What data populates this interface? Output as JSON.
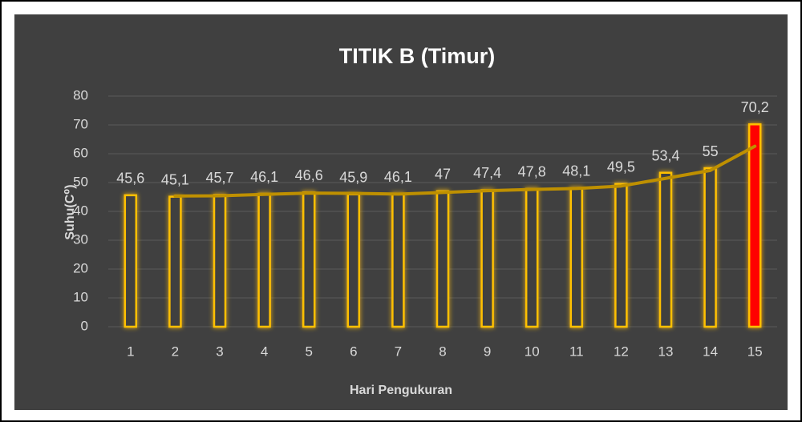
{
  "chart_data": {
    "type": "bar",
    "title": "TITIK B (Timur)",
    "x_label": "Hari Pengukuran",
    "y_label": "Suhu(C⁰)",
    "categories": [
      "1",
      "2",
      "3",
      "4",
      "5",
      "6",
      "7",
      "8",
      "9",
      "10",
      "11",
      "12",
      "13",
      "14",
      "15"
    ],
    "values": [
      45.6,
      45.1,
      45.7,
      46.1,
      46.6,
      45.9,
      46.1,
      47,
      47.4,
      47.8,
      48.1,
      49.5,
      53.4,
      55,
      70.2
    ],
    "value_labels": [
      "45,6",
      "45,1",
      "45,7",
      "46,1",
      "46,6",
      "45,9",
      "46,1",
      "47",
      "47,4",
      "47,8",
      "48,1",
      "49,5",
      "53,4",
      "55",
      "70,2"
    ],
    "color": "#ffc000",
    "bar_fills": [
      "#404040",
      "#404040",
      "#404040",
      "#404040",
      "#404040",
      "#404040",
      "#404040",
      "#404040",
      "#404040",
      "#404040",
      "#404040",
      "#404040",
      "#404040",
      "#404040",
      "#ff0000"
    ],
    "trendline": {
      "color": "#bf9000",
      "values": [
        null,
        45.35,
        45.4,
        45.9,
        46.35,
        46.25,
        46,
        46.55,
        47.2,
        47.6,
        47.95,
        48.8,
        51.45,
        54.2,
        62.6
      ]
    },
    "ylim": [
      0,
      80
    ],
    "yticks": [
      0,
      10,
      20,
      30,
      40,
      50,
      60,
      70,
      80
    ],
    "grid": true
  }
}
